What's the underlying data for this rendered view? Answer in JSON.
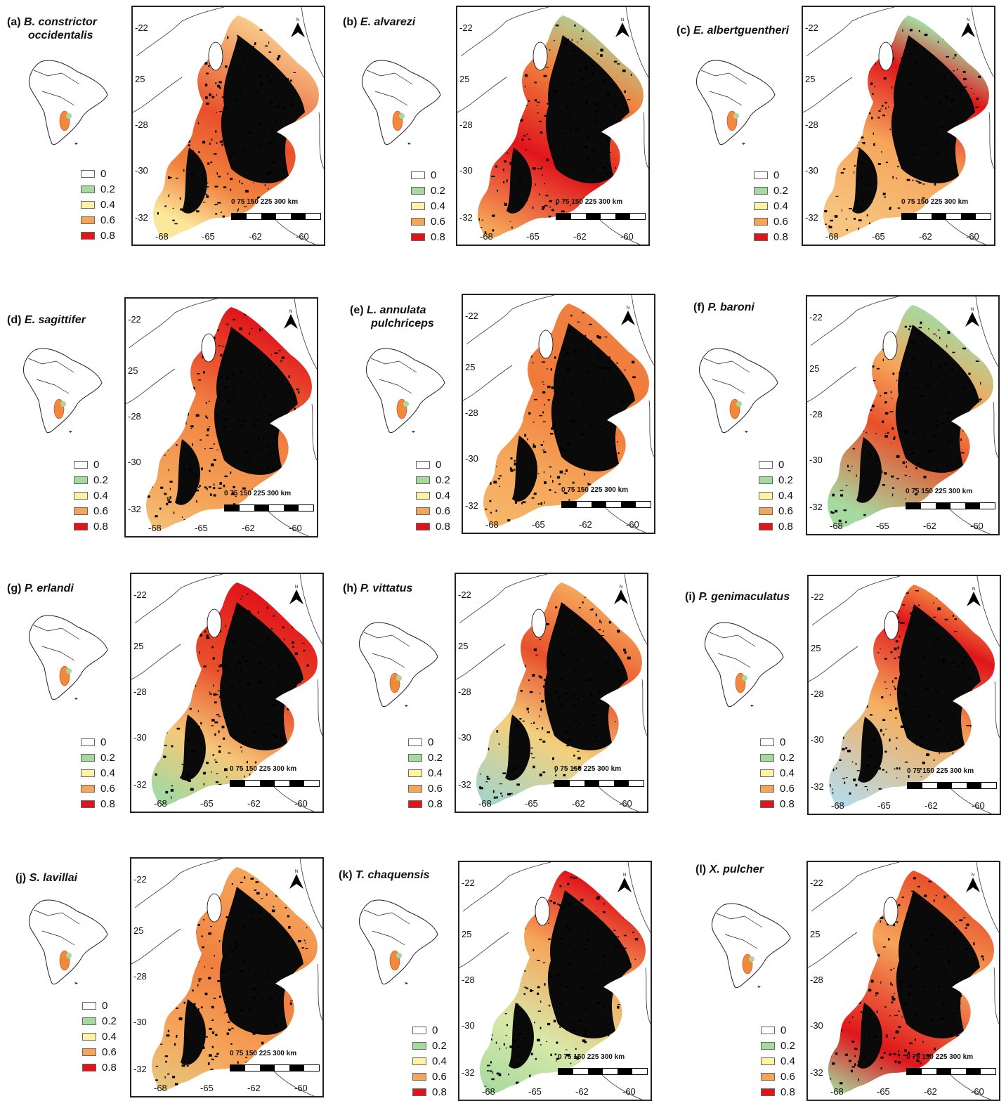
{
  "panels": [
    {
      "letter": "(a)",
      "species": "B. constrictor",
      "species2": "occidentalis",
      "scheme": "a"
    },
    {
      "letter": "(b)",
      "species": "E. alvarezi",
      "species2": "",
      "scheme": "b"
    },
    {
      "letter": "(c)",
      "species": "E. albertguentheri",
      "species2": "",
      "scheme": "c"
    },
    {
      "letter": "(d)",
      "species": "E. sagittifer",
      "species2": "",
      "scheme": "d"
    },
    {
      "letter": "(e)",
      "species": "L. annulata",
      "species2": "pulchriceps",
      "scheme": "e"
    },
    {
      "letter": "(f)",
      "species": "P. baroni",
      "species2": "",
      "scheme": "f"
    },
    {
      "letter": "(g)",
      "species": "P. erlandi",
      "species2": "",
      "scheme": "g"
    },
    {
      "letter": "(h)",
      "species": "P. vittatus",
      "species2": "",
      "scheme": "h"
    },
    {
      "letter": "(i)",
      "species": "P. genimaculatus",
      "species2": "",
      "scheme": "i"
    },
    {
      "letter": "(j)",
      "species": "S. lavillai",
      "species2": "",
      "scheme": "j"
    },
    {
      "letter": "(k)",
      "species": "T. chaquensis",
      "species2": "",
      "scheme": "k"
    },
    {
      "letter": "(l)",
      "species": "X. pulcher",
      "species2": "",
      "scheme": "l"
    }
  ],
  "legend": [
    {
      "label": "0",
      "color": "#ffffff"
    },
    {
      "label": "0.2",
      "color": "#a6d9a0"
    },
    {
      "label": "0.4",
      "color": "#fdf3a8"
    },
    {
      "label": "0.6",
      "color": "#f5a55a"
    },
    {
      "label": "0.8",
      "color": "#e0151b"
    }
  ],
  "lat_labels": [
    "-22",
    "25",
    "-28",
    "-30",
    "-32"
  ],
  "lon_labels": [
    "-68",
    "-65",
    "-62",
    "-60"
  ],
  "scale_text": "0   75  150 225 300 km",
  "north_label": "N"
}
